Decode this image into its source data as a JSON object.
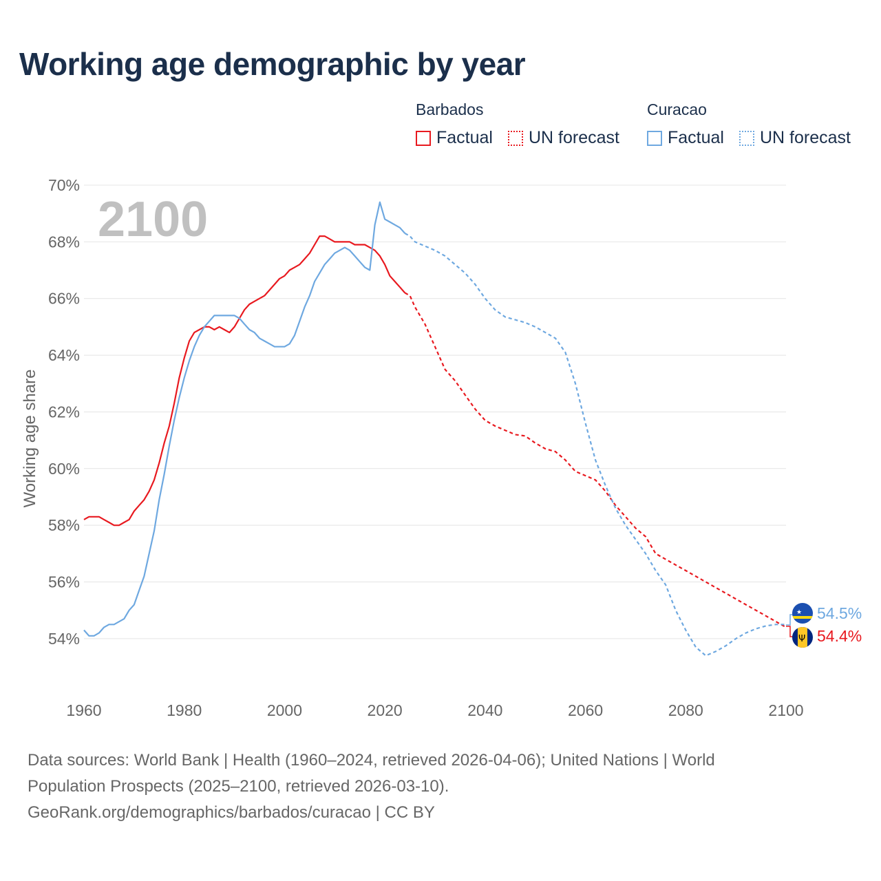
{
  "title": "Working age demographic by year",
  "legend": {
    "groups": [
      {
        "country": "Barbados",
        "color": "#e8191f",
        "factual_label": "Factual",
        "forecast_label": "UN forecast"
      },
      {
        "country": "Curacao",
        "color": "#6ea8e0",
        "factual_label": "Factual",
        "forecast_label": "UN forecast"
      }
    ]
  },
  "watermark_year": "2100",
  "end_labels": {
    "curacao": "54.5%",
    "barbados": "54.4%"
  },
  "source": {
    "line1": "Data sources: World Bank | Health (1960–2024, retrieved 2026-04-06); United Nations | World",
    "line2": "Population Prospects (2025–2100, retrieved 2026-03-10).",
    "line3": "GeoRank.org/demographics/barbados/curacao | CC BY"
  },
  "chart_data": {
    "type": "line",
    "title": "Working age demographic by year",
    "xlabel": "",
    "ylabel": "Working age share",
    "xlim": [
      1960,
      2100
    ],
    "ylim": [
      52.2,
      70
    ],
    "x_ticks": [
      1960,
      1980,
      2000,
      2020,
      2040,
      2060,
      2080,
      2100
    ],
    "x_tick_labels": [
      "1960",
      "1980",
      "2000",
      "2020",
      "2040",
      "2060",
      "2080",
      "2100"
    ],
    "y_ticks": [
      54,
      56,
      58,
      60,
      62,
      64,
      66,
      68,
      70
    ],
    "y_tick_labels": [
      "54%",
      "56%",
      "58%",
      "60%",
      "62%",
      "64%",
      "66%",
      "68%",
      "70%"
    ],
    "grid": true,
    "series": [
      {
        "name": "Barbados",
        "color": "#e8191f",
        "factual_until": 2024,
        "points": [
          [
            1960,
            58.2
          ],
          [
            1961,
            58.3
          ],
          [
            1962,
            58.3
          ],
          [
            1963,
            58.3
          ],
          [
            1964,
            58.2
          ],
          [
            1965,
            58.1
          ],
          [
            1966,
            58.0
          ],
          [
            1967,
            58.0
          ],
          [
            1968,
            58.1
          ],
          [
            1969,
            58.2
          ],
          [
            1970,
            58.5
          ],
          [
            1971,
            58.7
          ],
          [
            1972,
            58.9
          ],
          [
            1973,
            59.2
          ],
          [
            1974,
            59.6
          ],
          [
            1975,
            60.2
          ],
          [
            1976,
            60.9
          ],
          [
            1977,
            61.5
          ],
          [
            1978,
            62.3
          ],
          [
            1979,
            63.2
          ],
          [
            1980,
            63.9
          ],
          [
            1981,
            64.5
          ],
          [
            1982,
            64.8
          ],
          [
            1983,
            64.9
          ],
          [
            1984,
            65.0
          ],
          [
            1985,
            65.0
          ],
          [
            1986,
            64.9
          ],
          [
            1987,
            65.0
          ],
          [
            1988,
            64.9
          ],
          [
            1989,
            64.8
          ],
          [
            1990,
            65.0
          ],
          [
            1991,
            65.3
          ],
          [
            1992,
            65.6
          ],
          [
            1993,
            65.8
          ],
          [
            1994,
            65.9
          ],
          [
            1995,
            66.0
          ],
          [
            1996,
            66.1
          ],
          [
            1997,
            66.3
          ],
          [
            1998,
            66.5
          ],
          [
            1999,
            66.7
          ],
          [
            2000,
            66.8
          ],
          [
            2001,
            67.0
          ],
          [
            2002,
            67.1
          ],
          [
            2003,
            67.2
          ],
          [
            2004,
            67.4
          ],
          [
            2005,
            67.6
          ],
          [
            2006,
            67.9
          ],
          [
            2007,
            68.2
          ],
          [
            2008,
            68.2
          ],
          [
            2009,
            68.1
          ],
          [
            2010,
            68.0
          ],
          [
            2011,
            68.0
          ],
          [
            2012,
            68.0
          ],
          [
            2013,
            68.0
          ],
          [
            2014,
            67.9
          ],
          [
            2015,
            67.9
          ],
          [
            2016,
            67.9
          ],
          [
            2017,
            67.8
          ],
          [
            2018,
            67.7
          ],
          [
            2019,
            67.5
          ],
          [
            2020,
            67.2
          ],
          [
            2021,
            66.8
          ],
          [
            2022,
            66.6
          ],
          [
            2023,
            66.4
          ],
          [
            2024,
            66.2
          ],
          [
            2025,
            66.1
          ],
          [
            2026,
            65.7
          ],
          [
            2028,
            65.1
          ],
          [
            2030,
            64.3
          ],
          [
            2032,
            63.5
          ],
          [
            2034,
            63.1
          ],
          [
            2036,
            62.6
          ],
          [
            2038,
            62.1
          ],
          [
            2040,
            61.7
          ],
          [
            2042,
            61.5
          ],
          [
            2044,
            61.35
          ],
          [
            2046,
            61.2
          ],
          [
            2048,
            61.15
          ],
          [
            2050,
            60.9
          ],
          [
            2052,
            60.7
          ],
          [
            2054,
            60.6
          ],
          [
            2056,
            60.3
          ],
          [
            2058,
            59.9
          ],
          [
            2060,
            59.75
          ],
          [
            2062,
            59.6
          ],
          [
            2064,
            59.2
          ],
          [
            2066,
            58.7
          ],
          [
            2068,
            58.3
          ],
          [
            2070,
            57.9
          ],
          [
            2072,
            57.6
          ],
          [
            2074,
            57.0
          ],
          [
            2076,
            56.8
          ],
          [
            2080,
            56.4
          ],
          [
            2084,
            56.0
          ],
          [
            2088,
            55.6
          ],
          [
            2092,
            55.2
          ],
          [
            2096,
            54.8
          ],
          [
            2100,
            54.4
          ]
        ]
      },
      {
        "name": "Curacao",
        "color": "#6ea8e0",
        "factual_until": 2024,
        "points": [
          [
            1960,
            54.3
          ],
          [
            1961,
            54.1
          ],
          [
            1962,
            54.1
          ],
          [
            1963,
            54.2
          ],
          [
            1964,
            54.4
          ],
          [
            1965,
            54.5
          ],
          [
            1966,
            54.5
          ],
          [
            1967,
            54.6
          ],
          [
            1968,
            54.7
          ],
          [
            1969,
            55.0
          ],
          [
            1970,
            55.2
          ],
          [
            1971,
            55.7
          ],
          [
            1972,
            56.2
          ],
          [
            1973,
            57.0
          ],
          [
            1974,
            57.8
          ],
          [
            1975,
            58.9
          ],
          [
            1976,
            59.8
          ],
          [
            1977,
            60.8
          ],
          [
            1978,
            61.7
          ],
          [
            1979,
            62.5
          ],
          [
            1980,
            63.2
          ],
          [
            1981,
            63.8
          ],
          [
            1982,
            64.3
          ],
          [
            1983,
            64.7
          ],
          [
            1984,
            65.0
          ],
          [
            1985,
            65.2
          ],
          [
            1986,
            65.4
          ],
          [
            1987,
            65.4
          ],
          [
            1988,
            65.4
          ],
          [
            1989,
            65.4
          ],
          [
            1990,
            65.4
          ],
          [
            1991,
            65.3
          ],
          [
            1992,
            65.1
          ],
          [
            1993,
            64.9
          ],
          [
            1994,
            64.8
          ],
          [
            1995,
            64.6
          ],
          [
            1996,
            64.5
          ],
          [
            1997,
            64.4
          ],
          [
            1998,
            64.3
          ],
          [
            1999,
            64.3
          ],
          [
            2000,
            64.3
          ],
          [
            2001,
            64.4
          ],
          [
            2002,
            64.7
          ],
          [
            2003,
            65.2
          ],
          [
            2004,
            65.7
          ],
          [
            2005,
            66.1
          ],
          [
            2006,
            66.6
          ],
          [
            2007,
            66.9
          ],
          [
            2008,
            67.2
          ],
          [
            2009,
            67.4
          ],
          [
            2010,
            67.6
          ],
          [
            2011,
            67.7
          ],
          [
            2012,
            67.8
          ],
          [
            2013,
            67.7
          ],
          [
            2014,
            67.5
          ],
          [
            2015,
            67.3
          ],
          [
            2016,
            67.1
          ],
          [
            2017,
            67.0
          ],
          [
            2018,
            68.6
          ],
          [
            2019,
            69.4
          ],
          [
            2020,
            68.8
          ],
          [
            2021,
            68.7
          ],
          [
            2022,
            68.6
          ],
          [
            2023,
            68.5
          ],
          [
            2024,
            68.3
          ],
          [
            2025,
            68.2
          ],
          [
            2026,
            68.0
          ],
          [
            2028,
            67.85
          ],
          [
            2030,
            67.7
          ],
          [
            2032,
            67.5
          ],
          [
            2034,
            67.2
          ],
          [
            2036,
            66.9
          ],
          [
            2038,
            66.5
          ],
          [
            2040,
            66.0
          ],
          [
            2042,
            65.6
          ],
          [
            2044,
            65.35
          ],
          [
            2046,
            65.25
          ],
          [
            2048,
            65.15
          ],
          [
            2050,
            65.0
          ],
          [
            2052,
            64.8
          ],
          [
            2054,
            64.6
          ],
          [
            2056,
            64.1
          ],
          [
            2058,
            63.0
          ],
          [
            2060,
            61.6
          ],
          [
            2062,
            60.3
          ],
          [
            2064,
            59.4
          ],
          [
            2066,
            58.6
          ],
          [
            2068,
            58.0
          ],
          [
            2070,
            57.5
          ],
          [
            2072,
            57.0
          ],
          [
            2074,
            56.4
          ],
          [
            2076,
            55.9
          ],
          [
            2078,
            55.0
          ],
          [
            2080,
            54.3
          ],
          [
            2082,
            53.7
          ],
          [
            2084,
            53.4
          ],
          [
            2086,
            53.55
          ],
          [
            2088,
            53.75
          ],
          [
            2090,
            54.0
          ],
          [
            2092,
            54.2
          ],
          [
            2094,
            54.35
          ],
          [
            2096,
            54.45
          ],
          [
            2098,
            54.5
          ],
          [
            2100,
            54.5
          ]
        ]
      }
    ]
  }
}
